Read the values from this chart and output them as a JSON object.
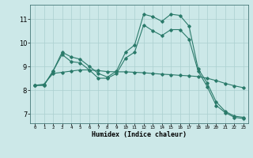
{
  "xlabel": "Humidex (Indice chaleur)",
  "background_color": "#cce8e8",
  "grid_color": "#aacfcf",
  "line_color": "#2a7a6a",
  "x_ticks": [
    0,
    1,
    2,
    3,
    4,
    5,
    6,
    7,
    8,
    9,
    10,
    11,
    12,
    13,
    14,
    15,
    16,
    17,
    18,
    19,
    20,
    21,
    22,
    23
  ],
  "y_ticks": [
    7,
    8,
    9,
    10,
    11
  ],
  "ylim": [
    6.6,
    11.6
  ],
  "xlim": [
    -0.5,
    23.5
  ],
  "series1_y": [
    8.2,
    8.2,
    8.8,
    9.6,
    9.4,
    9.3,
    9.0,
    8.7,
    8.55,
    8.8,
    9.6,
    9.9,
    11.2,
    11.1,
    10.9,
    11.2,
    11.15,
    10.7,
    8.9,
    8.3,
    7.5,
    7.1,
    6.9,
    6.85
  ],
  "series2_y": [
    8.2,
    8.2,
    8.8,
    9.5,
    9.2,
    9.15,
    8.85,
    8.5,
    8.5,
    8.7,
    9.35,
    9.6,
    10.75,
    10.5,
    10.3,
    10.55,
    10.55,
    10.15,
    8.8,
    8.15,
    7.35,
    7.05,
    6.85,
    6.8
  ],
  "series3_y": [
    8.2,
    8.25,
    8.7,
    8.75,
    8.8,
    8.85,
    8.85,
    8.82,
    8.78,
    8.77,
    8.77,
    8.75,
    8.73,
    8.7,
    8.67,
    8.65,
    8.62,
    8.6,
    8.57,
    8.5,
    8.4,
    8.28,
    8.18,
    8.1
  ]
}
